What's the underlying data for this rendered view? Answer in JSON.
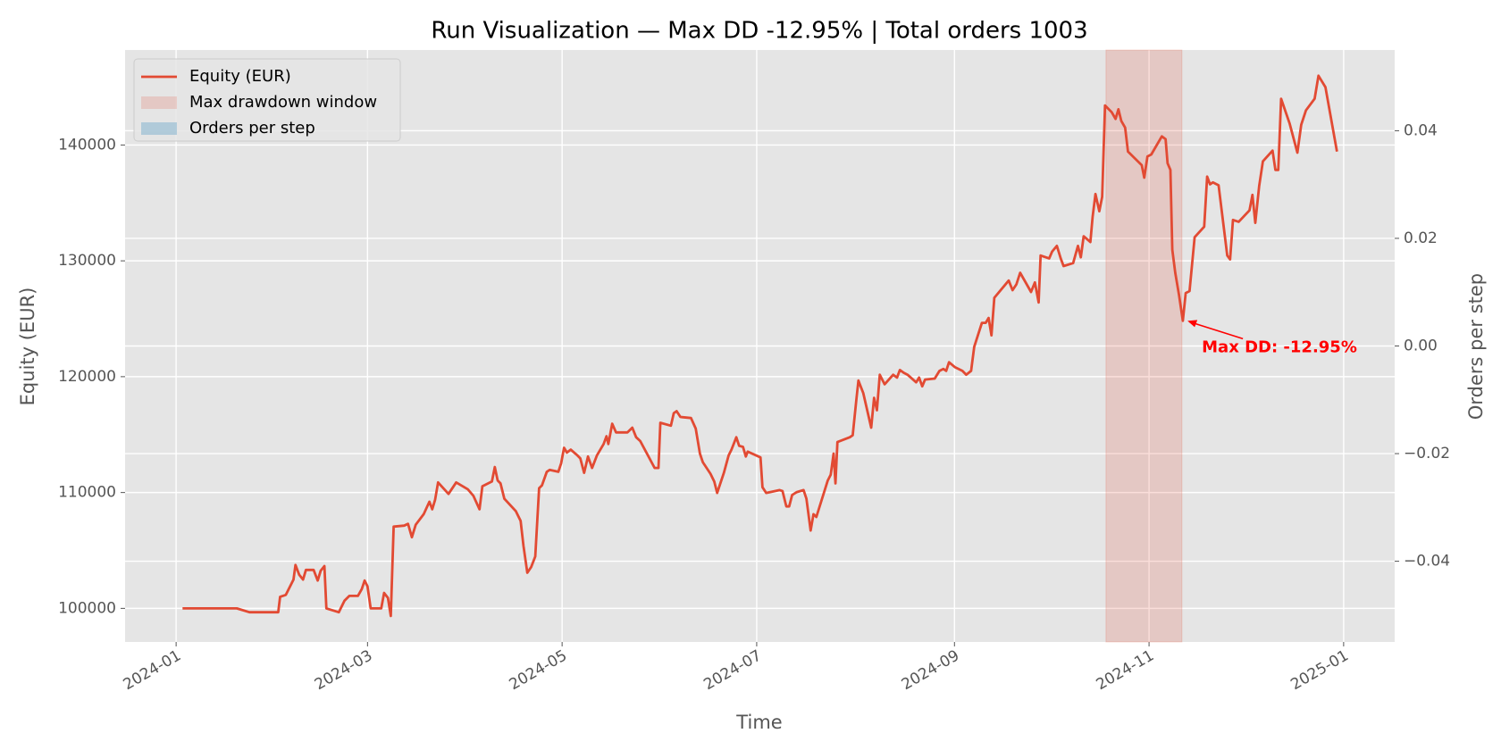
{
  "chart_data": {
    "type": "line",
    "title": "Run Visualization — Max DD -12.95% | Total orders 1003",
    "xlabel": "Time",
    "ylabel": "Equity (EUR)",
    "y2label": "Orders per step",
    "grid": true,
    "legend": "upper left",
    "xlim": [
      -16,
      382
    ],
    "xticks": [
      {
        "value": 0,
        "label": "2024-01"
      },
      {
        "value": 60,
        "label": "2024-03"
      },
      {
        "value": 121,
        "label": "2024-05"
      },
      {
        "value": 182,
        "label": "2024-07"
      },
      {
        "value": 244,
        "label": "2024-09"
      },
      {
        "value": 305,
        "label": "2024-11"
      },
      {
        "value": 366,
        "label": "2025-01"
      }
    ],
    "ylim": [
      97100,
      148200
    ],
    "yticks": [
      100000,
      110000,
      120000,
      130000,
      140000
    ],
    "y2lim": [
      -0.055,
      0.055
    ],
    "y2ticks": [
      {
        "value": -0.04,
        "label": "−0.04"
      },
      {
        "value": -0.02,
        "label": "−0.02"
      },
      {
        "value": 0,
        "label": "0.00"
      },
      0.02,
      0.04
    ],
    "series": [
      {
        "name": "Equity (EUR)",
        "color": "#e24a33",
        "x": [
          2,
          19,
          23,
          32,
          32.6,
          34.4,
          36.8,
          37.4,
          38.6,
          39.8,
          40.7,
          43.1,
          44.4,
          45.3,
          46.5,
          47.1,
          51,
          52.8,
          54.3,
          57,
          58.2,
          59.1,
          60,
          61,
          64.3,
          65.2,
          66.4,
          67.3,
          68.2,
          71.5,
          72.7,
          73.9,
          75.1,
          77.6,
          79.4,
          80.3,
          81.2,
          82.1,
          85.4,
          87.8,
          91.4,
          93.2,
          95.1,
          96,
          99,
          99.9,
          100.8,
          101.7,
          102.9,
          106.5,
          108,
          108.9,
          110.1,
          111.3,
          112.6,
          113.8,
          114.7,
          116.2,
          117.1,
          119.8,
          120.7,
          121.6,
          122.5,
          123.7,
          125.8,
          126.7,
          127.9,
          129.1,
          130.4,
          131.9,
          134,
          134.9,
          135.5,
          136.7,
          137.9,
          141.5,
          143,
          144.2,
          145.5,
          150,
          151.2,
          151.8,
          155.1,
          156,
          156.9,
          158.1,
          161.4,
          162.9,
          164.2,
          165.1,
          167.5,
          168.7,
          169.6,
          170.5,
          171.7,
          173.2,
          174.1,
          175.6,
          176.5,
          177.7,
          178.6,
          179.2,
          183.2,
          183.8,
          185,
          189.2,
          190.1,
          191.3,
          192.2,
          193.1,
          194.6,
          196.7,
          197.6,
          198.9,
          199.8,
          200.7,
          204.3,
          205.2,
          206.1,
          206.7,
          207.3,
          211.2,
          212.1,
          213.3,
          213.9,
          215.4,
          217.9,
          218.8,
          219.7,
          220.6,
          222.1,
          224.8,
          226,
          226.9,
          228.1,
          229.3,
          232,
          232.9,
          233.9,
          234.8,
          237.8,
          239.3,
          240.5,
          241.4,
          242.3,
          244.1,
          246.5,
          247.7,
          249.2,
          250.2,
          252.6,
          253.8,
          254.7,
          255.6,
          256.5,
          261,
          262.2,
          263.4,
          264.6,
          268,
          269.2,
          270.4,
          271,
          273.7,
          274.6,
          276.1,
          277.3,
          278.2,
          281.2,
          282.7,
          283.6,
          284.5,
          286.6,
          287.3,
          288.2,
          289.4,
          290.3,
          291.2,
          293.3,
          294.5,
          295.4,
          296.3,
          297.5,
          298.4,
          302.7,
          303.5,
          304.5,
          305.7,
          309,
          310.2,
          310.8,
          311.7,
          312.3,
          313.2,
          314.4,
          315.6,
          316.5,
          317.7,
          319.3,
          322.3,
          323.2,
          324.1,
          325,
          326.8,
          329.5,
          330.4,
          331.3,
          333.1,
          336.5,
          337.4,
          338.3,
          339.5,
          340.7,
          343.7,
          344.6,
          345.5,
          346.4,
          349.1,
          351.5,
          352.7,
          354.2,
          356.9,
          358.1,
          360.3,
          363.9
        ],
        "values": [
          100000,
          100000,
          99670,
          99670,
          101000,
          101160,
          102490,
          103740,
          102900,
          102490,
          103320,
          103320,
          102400,
          103240,
          103650,
          100000,
          99670,
          100660,
          101080,
          101080,
          101660,
          102400,
          101910,
          100000,
          100000,
          101330,
          100910,
          99340,
          107060,
          107140,
          107300,
          106140,
          107220,
          108130,
          109210,
          108550,
          109380,
          110870,
          109880,
          110870,
          110290,
          109710,
          108550,
          110540,
          110960,
          112200,
          111040,
          110790,
          109460,
          108380,
          107550,
          105400,
          103070,
          103570,
          104480,
          110380,
          110620,
          111790,
          111950,
          111790,
          112530,
          113860,
          113450,
          113700,
          113200,
          112950,
          111700,
          113110,
          112120,
          113200,
          114190,
          114860,
          114190,
          115940,
          115190,
          115190,
          115600,
          114770,
          114440,
          112120,
          112120,
          116020,
          115770,
          116850,
          117020,
          116520,
          116430,
          115520,
          113360,
          112620,
          111620,
          110960,
          109960,
          110710,
          111700,
          113200,
          113700,
          114770,
          114030,
          113940,
          113110,
          113530,
          113030,
          110460,
          109960,
          110210,
          110130,
          108800,
          108800,
          109790,
          110040,
          110210,
          109460,
          106720,
          108130,
          107890,
          111040,
          111540,
          113360,
          110790,
          114360,
          114770,
          114940,
          118180,
          119670,
          118590,
          115600,
          118180,
          117100,
          120170,
          119340,
          120170,
          119920,
          120580,
          120340,
          120170,
          119510,
          119920,
          119170,
          119750,
          119840,
          120500,
          120670,
          120500,
          121250,
          120830,
          120500,
          120170,
          120500,
          122580,
          124650,
          124650,
          125070,
          123570,
          126810,
          128300,
          127470,
          127970,
          128970,
          127310,
          128140,
          126400,
          130460,
          130210,
          130790,
          131290,
          130210,
          129550,
          129800,
          131290,
          130300,
          132120,
          131620,
          133780,
          135770,
          134280,
          135520,
          143410,
          142830,
          142250,
          143080,
          142080,
          141500,
          139430,
          138260,
          137180,
          139010,
          139180,
          140750,
          140500,
          138430,
          137850,
          130960,
          128970,
          127060,
          124820,
          127220,
          127390,
          132040,
          132950,
          137270,
          136610,
          136770,
          136520,
          130460,
          130130,
          133530,
          133370,
          134360,
          135690,
          133280,
          136440,
          138590,
          139510,
          137850,
          137850,
          143990,
          141830,
          139340,
          141750,
          142990,
          143990,
          145980,
          144990,
          139430
        ]
      },
      {
        "name": "Orders per step",
        "color": "#348abd",
        "axis": "y2",
        "x": [],
        "values": []
      }
    ],
    "span": {
      "name": "Max drawdown window",
      "color": "#e24a33",
      "x": [
        291.5,
        315.3
      ]
    },
    "annotation": {
      "text": "Max DD: -12.95%",
      "color": "#ff0000",
      "x": 316.5,
      "y": 124820
    }
  }
}
